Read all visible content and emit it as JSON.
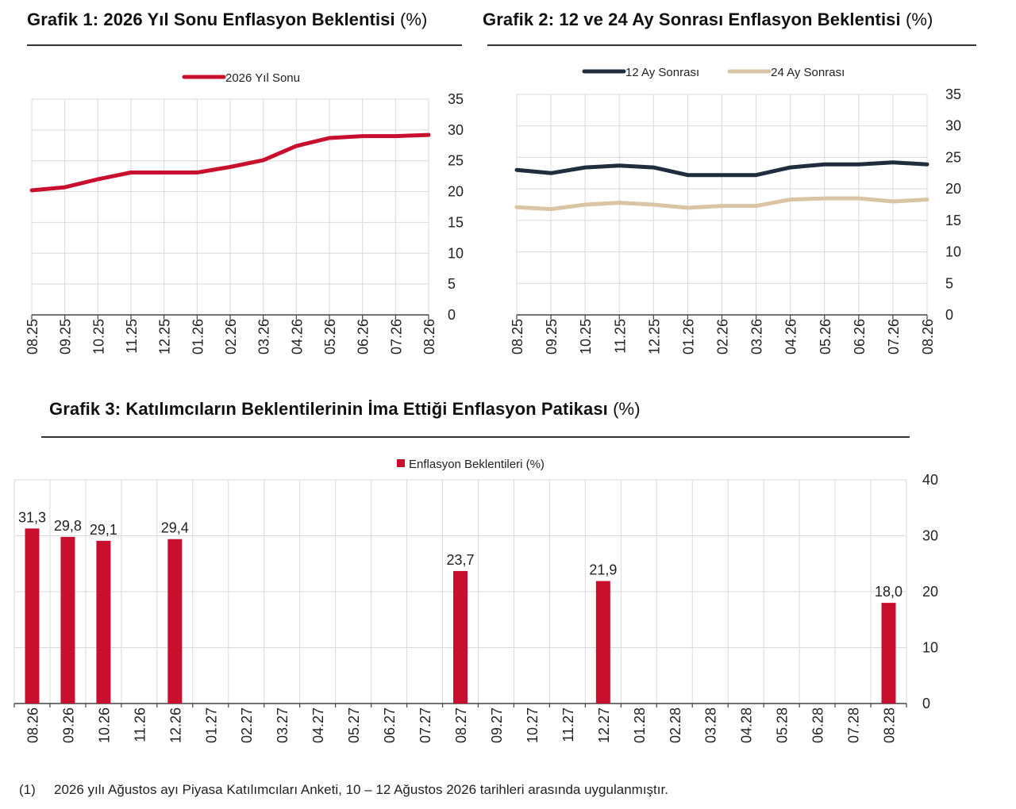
{
  "titles": {
    "c1_main": "Grafik 1: 2026 Yıl Sonu Enflasyon Beklentisi",
    "c1_unit": "(%)",
    "c2_main": "Grafik 2: 12 ve 24 Ay Sonrası Enflasyon Beklentisi",
    "c2_unit": "(%)",
    "c3_main": "Grafik 3: Katılımcıların Beklentilerinin İma Ettiği Enflasyon Patikası",
    "c3_unit": "(%)"
  },
  "footnote": {
    "number": "(1)",
    "text": "2026 yılı Ağustos ayı Piyasa Katılımcıları Anketi, 10 – 12 Ağustos 2026 tarihleri arasında uygulanmıştır."
  },
  "colors": {
    "red": "#c8102e",
    "navy": "#1f2d3d",
    "beige": "#d9c4a3",
    "grid": "#d9d9d9",
    "axis": "#444444"
  },
  "chart_data": [
    {
      "type": "line",
      "title": "Grafik 1: 2026 Yıl Sonu Enflasyon Beklentisi (%)",
      "categories": [
        "08.25",
        "09.25",
        "10.25",
        "11.25",
        "12.25",
        "01.26",
        "02.26",
        "03.26",
        "04.26",
        "05.26",
        "06.26",
        "07.26",
        "08.26"
      ],
      "series": [
        {
          "name": "2026 Yıl Sonu",
          "color": "#c8102e",
          "values": [
            20.2,
            20.7,
            22.0,
            23.1,
            23.1,
            23.1,
            24.0,
            25.1,
            27.4,
            28.7,
            29.0,
            29.0,
            29.2
          ]
        }
      ],
      "ylim": [
        0,
        35
      ],
      "yticks": [
        35,
        30,
        25,
        20,
        15,
        10,
        5,
        0
      ],
      "y_axis_side": "right",
      "legend": "top-center",
      "grid": true
    },
    {
      "type": "line",
      "title": "Grafik 2: 12 ve 24 Ay Sonrası Enflasyon Beklentisi (%)",
      "categories": [
        "08.25",
        "09.25",
        "10.25",
        "11.25",
        "12.25",
        "01.26",
        "02.26",
        "03.26",
        "04.26",
        "05.26",
        "06.26",
        "07.26",
        "08.26"
      ],
      "series": [
        {
          "name": "12 Ay Sonrası",
          "color": "#1f2d3d",
          "values": [
            23.0,
            22.5,
            23.4,
            23.7,
            23.4,
            22.2,
            22.2,
            22.2,
            23.4,
            23.9,
            23.9,
            24.2,
            23.9
          ]
        },
        {
          "name": "24 Ay Sonrası",
          "color": "#d9c4a3",
          "values": [
            17.1,
            16.8,
            17.5,
            17.8,
            17.5,
            17.0,
            17.3,
            17.3,
            18.3,
            18.5,
            18.5,
            18.0,
            18.3
          ]
        }
      ],
      "ylim": [
        0,
        35
      ],
      "yticks": [
        35,
        30,
        25,
        20,
        15,
        10,
        5,
        0
      ],
      "y_axis_side": "right",
      "legend": "top-center",
      "grid": true
    },
    {
      "type": "bar",
      "title": "Grafik 3: Katılımcıların Beklentilerinin İma Ettiği Enflasyon Patikası (%)",
      "categories": [
        "08.26",
        "09.26",
        "10.26",
        "11.26",
        "12.26",
        "01.27",
        "02.27",
        "03.27",
        "04.27",
        "05.27",
        "06.27",
        "07.27",
        "08.27",
        "09.27",
        "10.27",
        "11.27",
        "12.27",
        "01.28",
        "02.28",
        "03.28",
        "04.28",
        "05.28",
        "06.28",
        "07.28",
        "08.28"
      ],
      "series": [
        {
          "name": "Enflasyon Beklentileri (%)",
          "color": "#c8102e",
          "values": [
            31.3,
            29.8,
            29.1,
            null,
            29.4,
            null,
            null,
            null,
            null,
            null,
            null,
            null,
            23.7,
            null,
            null,
            null,
            21.9,
            null,
            null,
            null,
            null,
            null,
            null,
            null,
            18.0
          ],
          "labels": [
            "31,3",
            "29,8",
            "29,1",
            "",
            "29,4",
            "",
            "",
            "",
            "",
            "",
            "",
            "",
            "23,7",
            "",
            "",
            "",
            "21,9",
            "",
            "",
            "",
            "",
            "",
            "",
            "",
            "18,0"
          ]
        }
      ],
      "ylim": [
        0,
        40
      ],
      "yticks": [
        40,
        30,
        20,
        10,
        0
      ],
      "y_axis_side": "right",
      "legend": "top-center",
      "grid": true
    }
  ]
}
